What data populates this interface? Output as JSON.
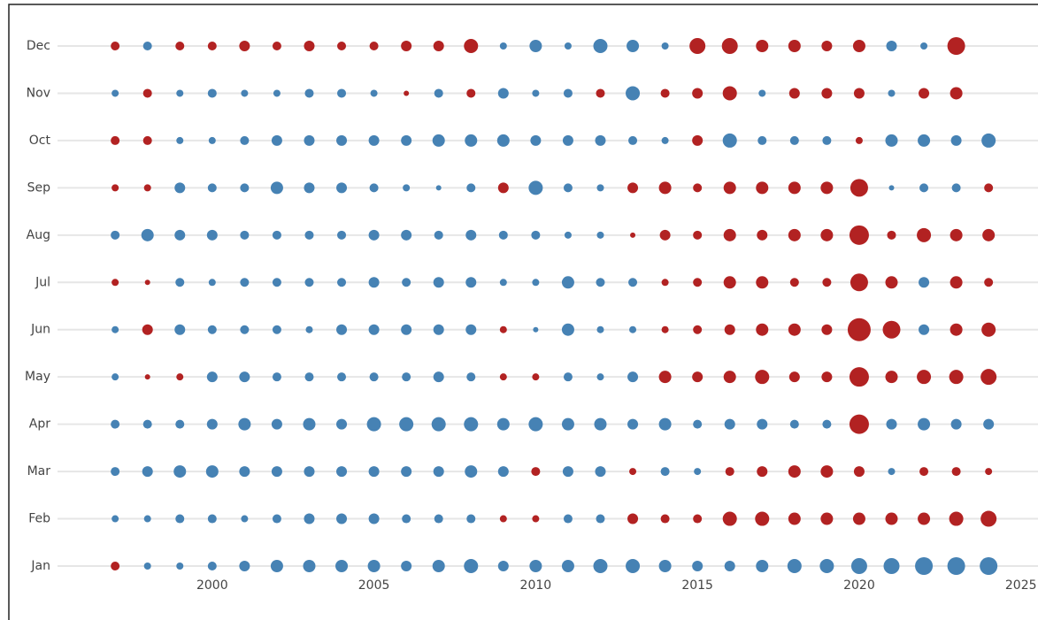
{
  "chart_data": {
    "type": "bubble",
    "x": [
      1997,
      1998,
      1999,
      2000,
      2001,
      2002,
      2003,
      2004,
      2005,
      2006,
      2007,
      2008,
      2009,
      2010,
      2011,
      2012,
      2013,
      2014,
      2015,
      2016,
      2017,
      2018,
      2019,
      2020,
      2021,
      2022,
      2023,
      2024
    ],
    "xlim": [
      1995.3,
      2025.5
    ],
    "xticks": [
      2000,
      2005,
      2010,
      2015,
      2020,
      2025
    ],
    "color_positive": "#b22222",
    "color_negative": "#4682b4",
    "grid": true,
    "series": [
      {
        "name": "Jan",
        "values": [
          5,
          -4,
          -4,
          -5,
          -6,
          -7,
          -7,
          -7,
          -7,
          -6,
          -7,
          -8,
          -6,
          -7,
          -7,
          -8,
          -8,
          -7,
          -6,
          -6,
          -7,
          -8,
          -8,
          -9,
          -9,
          -10,
          -10,
          -10
        ]
      },
      {
        "name": "Feb",
        "values": [
          -4,
          -4,
          -5,
          -5,
          -4,
          -5,
          -6,
          -6,
          -6,
          -5,
          -5,
          -5,
          4,
          4,
          -5,
          -5,
          6,
          5,
          5,
          8,
          8,
          7,
          7,
          7,
          7,
          7,
          8,
          9
        ]
      },
      {
        "name": "Mar",
        "values": [
          -5,
          -6,
          -7,
          -7,
          -6,
          -6,
          -6,
          -6,
          -6,
          -6,
          -6,
          -7,
          -6,
          5,
          -6,
          -6,
          4,
          -5,
          -4,
          5,
          6,
          7,
          7,
          6,
          -4,
          5,
          5,
          4
        ]
      },
      {
        "name": "Apr",
        "values": [
          -5,
          -5,
          -5,
          -6,
          -7,
          -6,
          -7,
          -6,
          -8,
          -8,
          -8,
          -8,
          -7,
          -8,
          -7,
          -7,
          -6,
          -7,
          -5,
          -6,
          -6,
          -5,
          -5,
          11,
          -6,
          -7,
          -6,
          -6
        ]
      },
      {
        "name": "May",
        "values": [
          -4,
          3,
          4,
          -6,
          -6,
          -5,
          -5,
          -5,
          -5,
          -5,
          -6,
          -5,
          4,
          4,
          -5,
          -4,
          -6,
          7,
          6,
          7,
          8,
          6,
          6,
          11,
          7,
          8,
          8,
          9
        ]
      },
      {
        "name": "Jun",
        "values": [
          -4,
          6,
          -6,
          -5,
          -5,
          -5,
          -4,
          -6,
          -6,
          -6,
          -6,
          -6,
          4,
          -3,
          -7,
          -4,
          -4,
          4,
          5,
          6,
          7,
          7,
          6,
          13,
          10,
          -6,
          7,
          8
        ]
      },
      {
        "name": "Jul",
        "values": [
          4,
          3,
          -5,
          -4,
          -5,
          -5,
          -5,
          -5,
          -6,
          -5,
          -6,
          -6,
          -4,
          -4,
          -7,
          -5,
          -5,
          4,
          5,
          7,
          7,
          5,
          5,
          10,
          7,
          -6,
          7,
          5
        ]
      },
      {
        "name": "Aug",
        "values": [
          -5,
          -7,
          -6,
          -6,
          -5,
          -5,
          -5,
          -5,
          -6,
          -6,
          -5,
          -6,
          -5,
          -5,
          -4,
          -4,
          3,
          6,
          5,
          7,
          6,
          7,
          7,
          11,
          5,
          8,
          7,
          7
        ]
      },
      {
        "name": "Sep",
        "values": [
          4,
          4,
          -6,
          -5,
          -5,
          -7,
          -6,
          -6,
          -5,
          -4,
          -3,
          -5,
          6,
          -8,
          -5,
          -4,
          6,
          7,
          5,
          7,
          7,
          7,
          7,
          10,
          -3,
          -5,
          -5,
          5
        ]
      },
      {
        "name": "Oct",
        "values": [
          5,
          5,
          -4,
          -4,
          -5,
          -6,
          -6,
          -6,
          -6,
          -6,
          -7,
          -7,
          -7,
          -6,
          -6,
          -6,
          -5,
          -4,
          6,
          -8,
          -5,
          -5,
          -5,
          4,
          -7,
          -7,
          -6,
          -8
        ]
      },
      {
        "name": "Nov",
        "values": [
          -4,
          5,
          -4,
          -5,
          -4,
          -4,
          -5,
          -5,
          -4,
          3,
          -5,
          5,
          -6,
          -4,
          -5,
          5,
          -8,
          5,
          6,
          8,
          -4,
          6,
          6,
          6,
          -4,
          6,
          7,
          null
        ]
      },
      {
        "name": "Dec",
        "values": [
          5,
          -5,
          5,
          5,
          6,
          5,
          6,
          5,
          5,
          6,
          6,
          8,
          -4,
          -7,
          -4,
          -8,
          -7,
          -4,
          9,
          9,
          7,
          7,
          6,
          7,
          -6,
          -4,
          10,
          null
        ]
      }
    ]
  }
}
